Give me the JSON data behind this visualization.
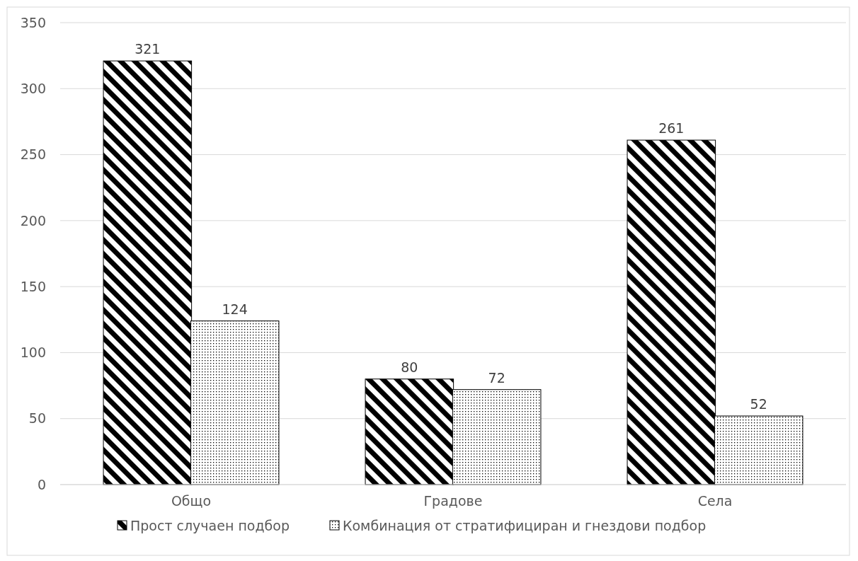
{
  "chart_data": {
    "type": "bar",
    "categories": [
      "Общо",
      "Градове",
      "Села"
    ],
    "series": [
      {
        "name": "Прост случаен подбор",
        "color": "#000000",
        "values": [
          321,
          80,
          261
        ]
      },
      {
        "name": "Комбинация от стратифициран и гнездови подбор",
        "color": "#000000",
        "values": [
          124,
          72,
          52
        ]
      }
    ],
    "ylim": [
      0,
      350
    ],
    "yticks": [
      0,
      50,
      100,
      150,
      200,
      250,
      300,
      350
    ],
    "grid": "y",
    "legend": "bottom",
    "data_labels": true
  }
}
